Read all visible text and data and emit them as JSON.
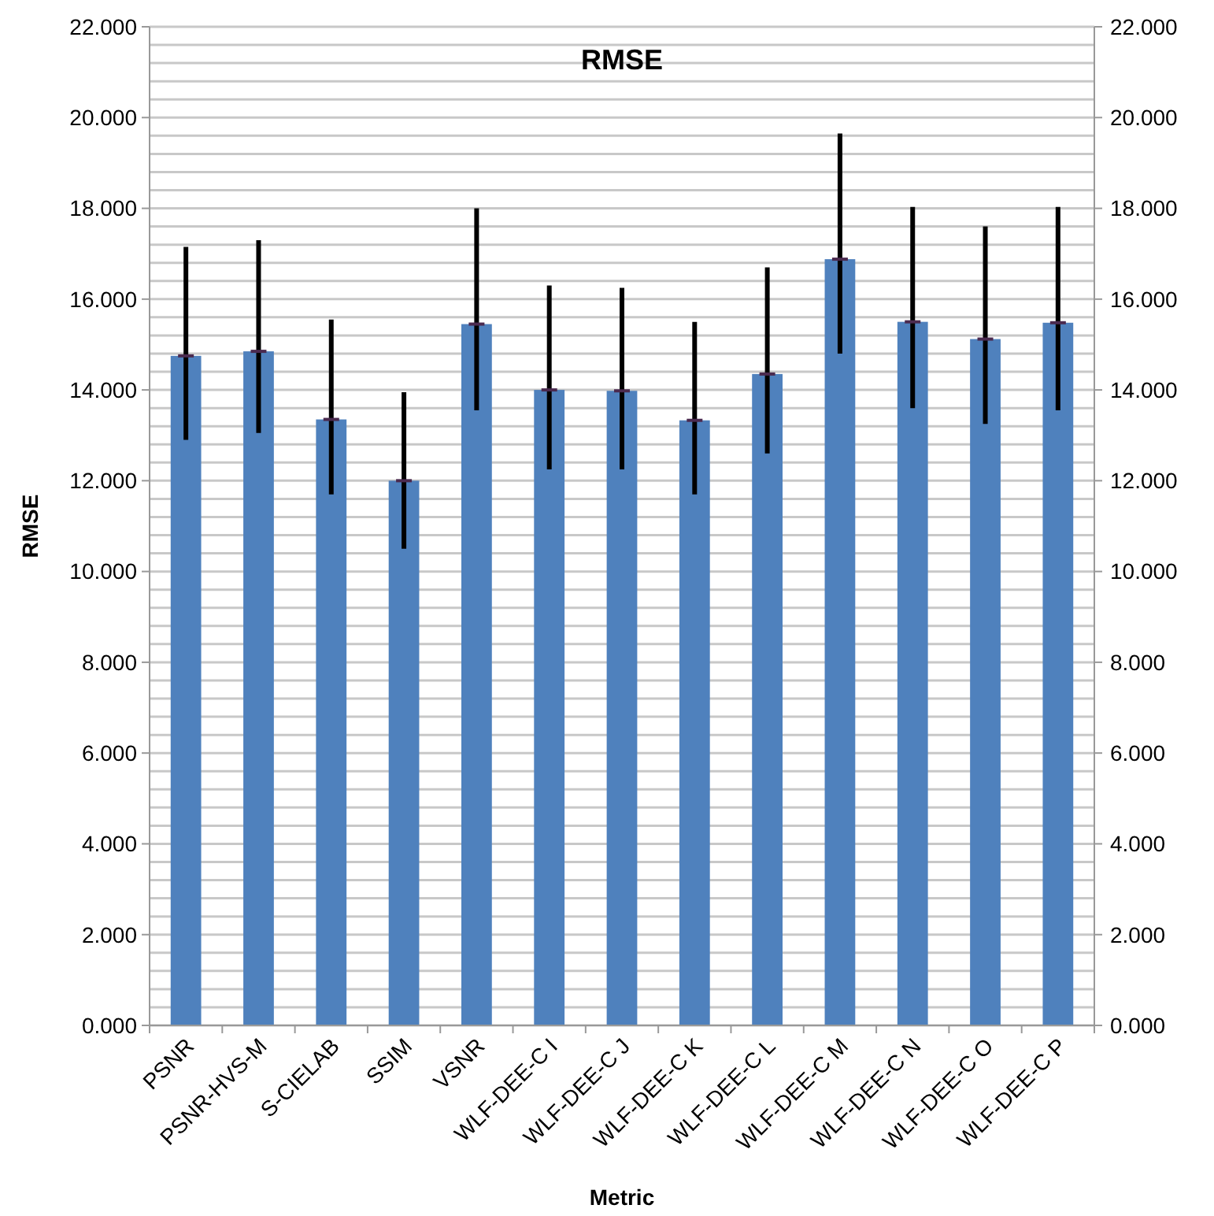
{
  "chart_data": {
    "type": "bar",
    "title": "RMSE",
    "xlabel": "Metric",
    "ylabel": "RMSE",
    "categories": [
      "PSNR",
      "PSNR-HVS-M",
      "S-CIELAB",
      "SSIM",
      "VSNR",
      "WLF-DEE-C I",
      "WLF-DEE-C J",
      "WLF-DEE-C K",
      "WLF-DEE-C L",
      "WLF-DEE-C M",
      "WLF-DEE-C N",
      "WLF-DEE-C O",
      "WLF-DEE-C P"
    ],
    "series": [
      {
        "color": "#4f81bd",
        "values": [
          14.75,
          14.85,
          13.35,
          12.0,
          15.45,
          14.0,
          13.98,
          13.33,
          14.35,
          16.88,
          15.5,
          15.12,
          15.48
        ],
        "errors": [
          [
            12.9,
            17.15
          ],
          [
            13.05,
            17.3
          ],
          [
            11.7,
            15.55
          ],
          [
            10.5,
            13.95
          ],
          [
            13.55,
            18.0
          ],
          [
            12.25,
            16.3
          ],
          [
            12.25,
            16.25
          ],
          [
            11.7,
            15.5
          ],
          [
            12.6,
            16.7
          ],
          [
            14.8,
            19.65
          ],
          [
            13.6,
            18.03
          ],
          [
            13.25,
            17.6
          ],
          [
            13.55,
            18.03
          ]
        ]
      }
    ],
    "ylim": [
      0,
      22
    ],
    "yticks": [
      {
        "value": 0,
        "label": "0.000"
      },
      {
        "value": 0.4,
        "label": null
      },
      {
        "value": 0.8,
        "label": null
      },
      {
        "value": 1.2,
        "label": null
      },
      {
        "value": 1.6,
        "label": null
      },
      {
        "value": 2,
        "label": "2.000"
      },
      {
        "value": 2.4,
        "label": null
      },
      {
        "value": 2.8,
        "label": null
      },
      {
        "value": 3.2,
        "label": null
      },
      {
        "value": 3.6,
        "label": null
      },
      {
        "value": 4,
        "label": "4.000"
      },
      {
        "value": 4.4,
        "label": null
      },
      {
        "value": 4.8,
        "label": null
      },
      {
        "value": 5.2,
        "label": null
      },
      {
        "value": 5.6,
        "label": null
      },
      {
        "value": 6,
        "label": "6.000"
      },
      {
        "value": 6.4,
        "label": null
      },
      {
        "value": 6.8,
        "label": null
      },
      {
        "value": 7.2,
        "label": null
      },
      {
        "value": 7.6,
        "label": null
      },
      {
        "value": 8,
        "label": "8.000"
      },
      {
        "value": 8.4,
        "label": null
      },
      {
        "value": 8.8,
        "label": null
      },
      {
        "value": 9.2,
        "label": null
      },
      {
        "value": 9.6,
        "label": null
      },
      {
        "value": 10,
        "label": "10.000"
      },
      {
        "value": 10.4,
        "label": null
      },
      {
        "value": 10.8,
        "label": null
      },
      {
        "value": 11.2,
        "label": null
      },
      {
        "value": 11.6,
        "label": null
      },
      {
        "value": 12,
        "label": "12.000"
      },
      {
        "value": 12.4,
        "label": null
      },
      {
        "value": 12.8,
        "label": null
      },
      {
        "value": 13.2,
        "label": null
      },
      {
        "value": 13.6,
        "label": null
      },
      {
        "value": 14,
        "label": "14.000"
      },
      {
        "value": 14.4,
        "label": null
      },
      {
        "value": 14.8,
        "label": null
      },
      {
        "value": 15.2,
        "label": null
      },
      {
        "value": 15.6,
        "label": null
      },
      {
        "value": 16,
        "label": "16.000"
      },
      {
        "value": 16.4,
        "label": null
      },
      {
        "value": 16.8,
        "label": null
      },
      {
        "value": 17.2,
        "label": null
      },
      {
        "value": 17.6,
        "label": null
      },
      {
        "value": 18,
        "label": "18.000"
      },
      {
        "value": 18.4,
        "label": null
      },
      {
        "value": 18.8,
        "label": null
      },
      {
        "value": 19.2,
        "label": null
      },
      {
        "value": 19.6,
        "label": null
      },
      {
        "value": 20,
        "label": "20.000"
      },
      {
        "value": 20.4,
        "label": null
      },
      {
        "value": 20.8,
        "label": null
      },
      {
        "value": 21.2,
        "label": null
      },
      {
        "value": 21.6,
        "label": null
      },
      {
        "value": 22,
        "label": "22.000"
      }
    ],
    "y2lim": [
      0,
      22
    ],
    "y2ticks": [
      {
        "value": 0,
        "label": "0.000"
      },
      {
        "value": 2,
        "label": "2.000"
      },
      {
        "value": 4,
        "label": "4.000"
      },
      {
        "value": 6,
        "label": "6.000"
      },
      {
        "value": 8,
        "label": "8.000"
      },
      {
        "value": 10,
        "label": "10.000"
      },
      {
        "value": 12,
        "label": "12.000"
      },
      {
        "value": 14,
        "label": "14.000"
      },
      {
        "value": 16,
        "label": "16.000"
      },
      {
        "value": 18,
        "label": "18.000"
      },
      {
        "value": 20,
        "label": "20.000"
      },
      {
        "value": 22,
        "label": "22.000"
      }
    ],
    "grid": true
  }
}
